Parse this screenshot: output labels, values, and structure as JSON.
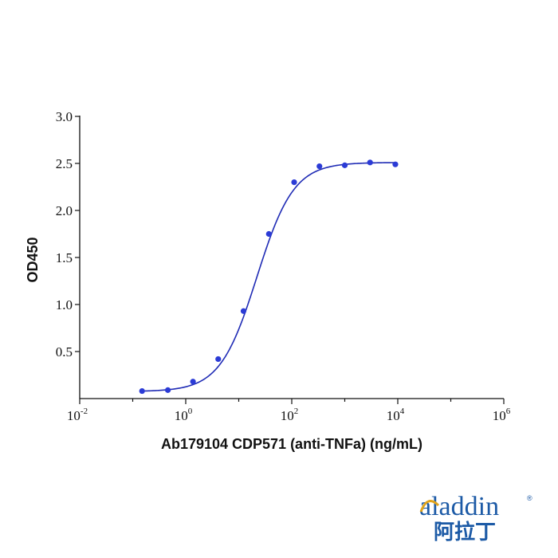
{
  "chart_data": {
    "type": "scatter",
    "xlabel": "Ab179104 CDP571 (anti-TNFa) (ng/mL)",
    "ylabel": "OD450",
    "xscale": "log10",
    "xlim": [
      0.01,
      1000000
    ],
    "ylim": [
      0,
      3.0
    ],
    "x_ticks": [
      {
        "base": "10",
        "exp": "-2",
        "value": 0.01
      },
      {
        "base": "10",
        "exp": "0",
        "value": 1
      },
      {
        "base": "10",
        "exp": "2",
        "value": 100
      },
      {
        "base": "10",
        "exp": "4",
        "value": 10000
      },
      {
        "base": "10",
        "exp": "6",
        "value": 1000000
      }
    ],
    "y_ticks": [
      "0.5",
      "1.0",
      "1.5",
      "2.0",
      "2.5",
      "3.0"
    ],
    "grid": false,
    "series": [
      {
        "marker_color": "#2b3bd6",
        "line_color": "#1f2bb5",
        "x": [
          0.15,
          0.46,
          1.37,
          4.1,
          12.3,
          37,
          111,
          333,
          1000,
          3000,
          9000
        ],
        "y": [
          0.08,
          0.09,
          0.18,
          0.42,
          0.93,
          1.75,
          2.3,
          2.47,
          2.48,
          2.51,
          2.49
        ]
      }
    ],
    "fit": {
      "model": "4PL",
      "bottom": 0.075,
      "top": 2.51,
      "ec50": 22,
      "hill": 1.25
    }
  },
  "logo": {
    "name": "aladdin",
    "chinese": "阿拉丁",
    "mark": "®"
  }
}
